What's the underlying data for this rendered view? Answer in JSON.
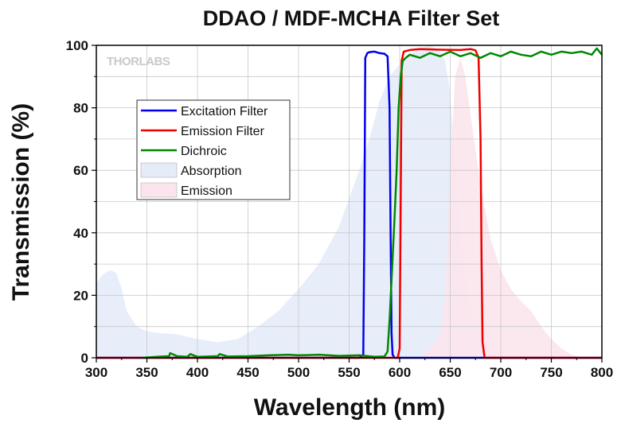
{
  "chart_data": {
    "type": "line",
    "title": "DDAO / MDF-MCHA Filter Set",
    "xlabel": "Wavelength (nm)",
    "ylabel": "Transmission (%)",
    "xlim": [
      300,
      800
    ],
    "ylim": [
      0,
      100
    ],
    "x_ticks": [
      300,
      350,
      400,
      450,
      500,
      550,
      600,
      650,
      700,
      750,
      800
    ],
    "y_ticks": [
      0,
      20,
      40,
      60,
      80,
      100
    ],
    "grid": true,
    "legend_position": "top-left",
    "watermark": "THORLABS",
    "series": [
      {
        "name": "Excitation Filter",
        "kind": "line",
        "color": "#0000ee",
        "x": [
          300,
          560,
          564,
          565,
          566,
          568,
          570,
          575,
          580,
          585,
          588,
          590,
          591,
          592,
          593,
          595,
          600,
          700,
          800
        ],
        "y": [
          0,
          0,
          1,
          40,
          96,
          97.5,
          97.8,
          98,
          97.5,
          97.3,
          96.5,
          80,
          40,
          8,
          1,
          0,
          0,
          0,
          0
        ]
      },
      {
        "name": "Emission Filter",
        "kind": "line",
        "color": "#ee0000",
        "x": [
          300,
          598,
          600,
          601,
          602,
          604,
          610,
          620,
          640,
          660,
          670,
          675,
          678,
          680,
          681,
          682,
          684,
          700,
          800
        ],
        "y": [
          0,
          0,
          3,
          50,
          95,
          98,
          98.5,
          98.8,
          98.6,
          98.5,
          98.8,
          98.4,
          96,
          70,
          30,
          5,
          0,
          0,
          0
        ]
      },
      {
        "name": "Dichroic",
        "kind": "line",
        "color": "#008800",
        "x": [
          345,
          360,
          372,
          373,
          380,
          390,
          393,
          400,
          420,
          422,
          430,
          450,
          470,
          490,
          500,
          520,
          540,
          560,
          575,
          585,
          588,
          590,
          592,
          595,
          597,
          599,
          601,
          603,
          606,
          610,
          620,
          630,
          640,
          650,
          660,
          670,
          680,
          690,
          700,
          710,
          720,
          730,
          740,
          750,
          760,
          770,
          780,
          790,
          795,
          800
        ],
        "y": [
          0,
          0.3,
          0.5,
          1.5,
          0.5,
          0.3,
          1.2,
          0.3,
          0.5,
          1.2,
          0.4,
          0.5,
          0.8,
          1.0,
          0.8,
          1.0,
          0.6,
          0.8,
          0.3,
          0.4,
          2,
          12,
          25,
          45,
          60,
          80,
          90,
          95,
          96,
          97,
          96,
          97.5,
          96.5,
          98,
          96.5,
          97.5,
          96,
          97.5,
          96.5,
          98,
          97,
          96.5,
          98,
          97,
          98,
          97.5,
          98,
          97,
          99,
          97
        ]
      },
      {
        "name": "Absorption",
        "kind": "area",
        "color": "#e6ebfa",
        "x": [
          300,
          305,
          310,
          315,
          320,
          325,
          330,
          340,
          350,
          360,
          380,
          400,
          420,
          440,
          460,
          480,
          500,
          520,
          540,
          560,
          570,
          580,
          590,
          600,
          610,
          620,
          630,
          640,
          645,
          650,
          655,
          660,
          670,
          680,
          690,
          700
        ],
        "y": [
          24,
          26,
          27.5,
          28,
          27,
          22,
          15,
          10,
          8.5,
          8,
          7.5,
          6,
          5,
          6,
          10,
          15,
          22,
          30,
          42,
          60,
          70,
          82,
          90,
          94,
          97,
          99,
          100,
          98,
          95,
          85,
          60,
          38,
          15,
          5,
          1.5,
          0
        ]
      },
      {
        "name": "Emission",
        "kind": "area",
        "color": "#fbe4ec",
        "x": [
          620,
          630,
          640,
          645,
          650,
          655,
          660,
          665,
          670,
          680,
          690,
          700,
          710,
          720,
          730,
          740,
          750,
          760,
          770,
          780
        ],
        "y": [
          0,
          3,
          8,
          20,
          60,
          90,
          96,
          90,
          78,
          55,
          38,
          28,
          22,
          18,
          15,
          10,
          6,
          3,
          1,
          0
        ]
      }
    ]
  }
}
